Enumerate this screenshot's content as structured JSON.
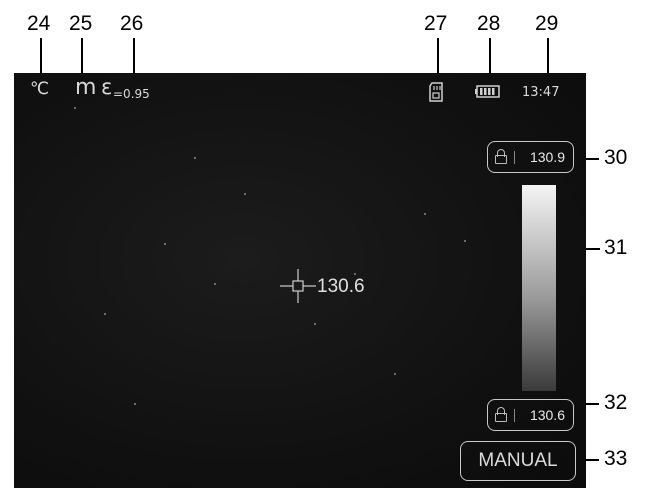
{
  "callouts": [
    "24",
    "25",
    "26",
    "27",
    "28",
    "29",
    "30",
    "31",
    "32",
    "33"
  ],
  "status": {
    "unit": "℃",
    "mode_letter": "m",
    "emissivity_symbol": "ε",
    "emissivity": "=0.95",
    "time": "13:47"
  },
  "icons": {
    "sd_card": "sd-card-icon",
    "battery": "battery-icon",
    "lock": "lock-icon",
    "crosshair": "crosshair-icon"
  },
  "scale": {
    "max": "130.9",
    "min": "130.6"
  },
  "center_temp": "130.6",
  "mode_button": "MANUAL"
}
